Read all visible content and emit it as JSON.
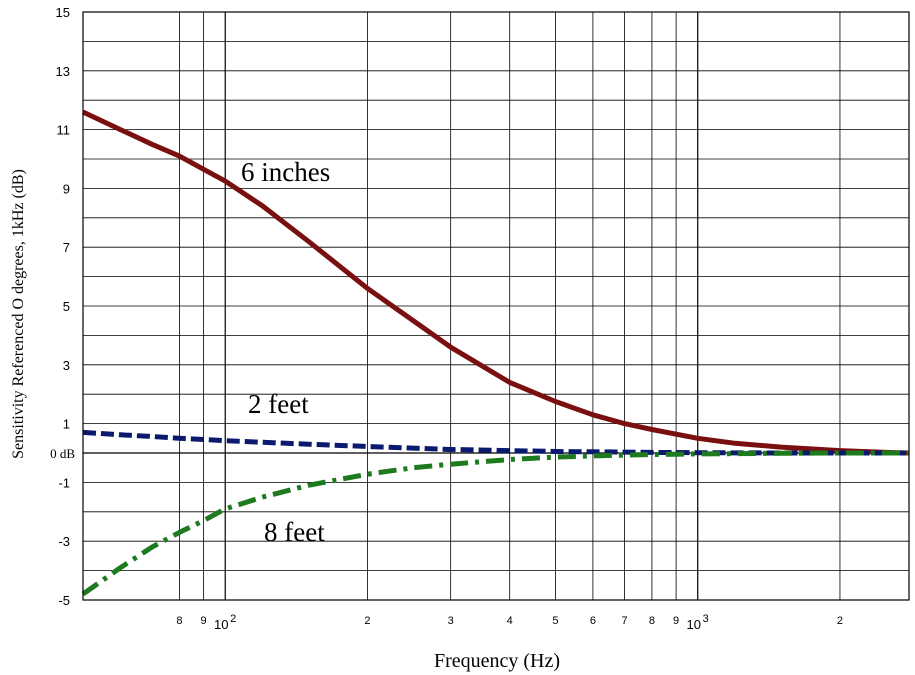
{
  "chart_data": {
    "type": "line",
    "title": "",
    "xlabel": "Frequency (Hz)",
    "ylabel": "Sensitivity Referenced  O degrees, 1kHz (dB)",
    "xscale": "log",
    "xlim": [
      50,
      2800
    ],
    "ylim": [
      -5,
      15
    ],
    "grid": true,
    "y_ticks": [
      15,
      13,
      11,
      9,
      7,
      5,
      3,
      1,
      -1,
      -3,
      -5
    ],
    "y_tick_labels": [
      "15",
      "13",
      "11",
      "9",
      "7",
      "5",
      "3",
      "1",
      "-1",
      "-3",
      "-5"
    ],
    "zero_label": "0 dB",
    "x_ticks": [
      {
        "value": 80,
        "label": "8"
      },
      {
        "value": 90,
        "label": "9"
      },
      {
        "value": 100,
        "label": "10",
        "sup": "2"
      },
      {
        "value": 200,
        "label": "2"
      },
      {
        "value": 300,
        "label": "3"
      },
      {
        "value": 400,
        "label": "4"
      },
      {
        "value": 500,
        "label": "5"
      },
      {
        "value": 600,
        "label": "6"
      },
      {
        "value": 700,
        "label": "7"
      },
      {
        "value": 800,
        "label": "8"
      },
      {
        "value": 900,
        "label": "9"
      },
      {
        "value": 1000,
        "label": "10",
        "sup": "3"
      },
      {
        "value": 2000,
        "label": "2"
      }
    ],
    "series": [
      {
        "name": "6 inches",
        "color": "#7a0f0f",
        "style": "solid",
        "x": [
          50,
          60,
          70,
          80,
          90,
          100,
          120,
          150,
          200,
          250,
          300,
          400,
          500,
          600,
          700,
          800,
          1000,
          1200,
          1500,
          2000,
          2500,
          2800
        ],
        "y": [
          11.6,
          11.0,
          10.5,
          10.1,
          9.65,
          9.25,
          8.4,
          7.2,
          5.6,
          4.5,
          3.6,
          2.4,
          1.75,
          1.3,
          1.0,
          0.8,
          0.5,
          0.33,
          0.2,
          0.08,
          0.02,
          0.0
        ]
      },
      {
        "name": "2 feet",
        "color": "#0a1a6e",
        "style": "dashed",
        "x": [
          50,
          60,
          70,
          80,
          90,
          100,
          150,
          200,
          300,
          400,
          500,
          600,
          700,
          800,
          1000,
          1500,
          2000,
          2800
        ],
        "y": [
          0.7,
          0.62,
          0.56,
          0.5,
          0.46,
          0.42,
          0.3,
          0.22,
          0.12,
          0.08,
          0.05,
          0.04,
          0.03,
          0.02,
          0.01,
          0.0,
          0.0,
          0.0
        ]
      },
      {
        "name": "8 feet",
        "color": "#1e7a1e",
        "style": "dashdot",
        "x": [
          50,
          60,
          70,
          80,
          90,
          100,
          120,
          150,
          200,
          250,
          300,
          400,
          500,
          600,
          700,
          800,
          1000,
          1500,
          2000,
          2800
        ],
        "y": [
          -4.8,
          -3.9,
          -3.2,
          -2.7,
          -2.3,
          -1.9,
          -1.5,
          -1.1,
          -0.72,
          -0.5,
          -0.38,
          -0.22,
          -0.14,
          -0.1,
          -0.07,
          -0.05,
          -0.03,
          -0.01,
          0.0,
          0.0
        ]
      }
    ]
  }
}
